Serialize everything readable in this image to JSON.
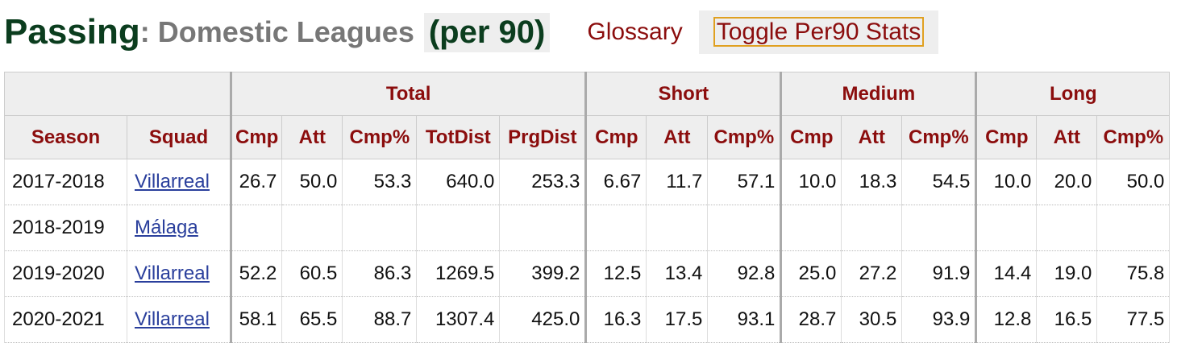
{
  "header": {
    "title": "Passing",
    "subtitle": ": Domestic Leagues",
    "mode": "(per 90)",
    "glossary": "Glossary",
    "toggle": "Toggle Per90 Stats"
  },
  "table": {
    "groups": [
      {
        "label": "",
        "span": 2
      },
      {
        "label": "Total",
        "span": 5
      },
      {
        "label": "Short",
        "span": 3
      },
      {
        "label": "Medium",
        "span": 3
      },
      {
        "label": "Long",
        "span": 3
      }
    ],
    "columns": [
      "Season",
      "Squad",
      "Cmp",
      "Att",
      "Cmp%",
      "TotDist",
      "PrgDist",
      "Cmp",
      "Att",
      "Cmp%",
      "Cmp",
      "Att",
      "Cmp%",
      "Cmp",
      "Att",
      "Cmp%"
    ],
    "rows": [
      [
        "2017-2018",
        "Villarreal",
        "26.7",
        "50.0",
        "53.3",
        "640.0",
        "253.3",
        "6.67",
        "11.7",
        "57.1",
        "10.0",
        "18.3",
        "54.5",
        "10.0",
        "20.0",
        "50.0"
      ],
      [
        "2018-2019",
        "Málaga"
      ],
      [
        "2019-2020",
        "Villarreal",
        "52.2",
        "60.5",
        "86.3",
        "1269.5",
        "399.2",
        "12.5",
        "13.4",
        "92.8",
        "25.0",
        "27.2",
        "91.9",
        "14.4",
        "19.0",
        "75.8"
      ],
      [
        "2020-2021",
        "Villarreal",
        "58.1",
        "65.5",
        "88.7",
        "1307.4",
        "425.0",
        "16.3",
        "17.5",
        "93.1",
        "28.7",
        "30.5",
        "93.9",
        "12.8",
        "16.5",
        "77.5"
      ]
    ]
  }
}
